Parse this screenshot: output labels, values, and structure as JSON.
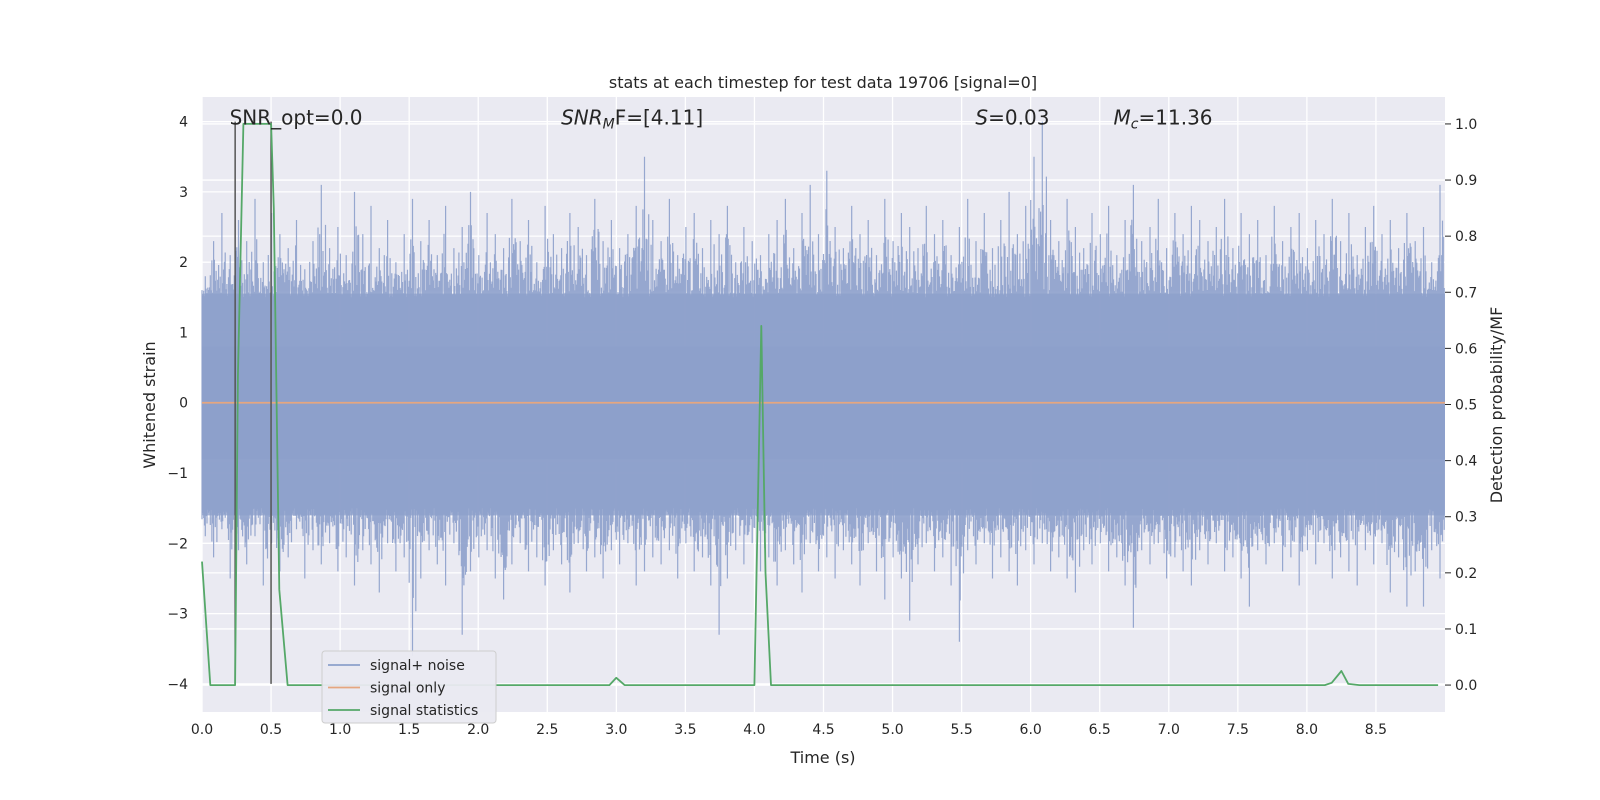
{
  "chart_data": {
    "type": "line",
    "title": "stats at each timestep for test data 19706 [signal=0]",
    "xlabel": "Time (s)",
    "ylabel": "Whitened strain",
    "y2label": "Detection probability/MF",
    "xlim": [
      0,
      9.0
    ],
    "ylim": [
      -4.4,
      4.35
    ],
    "y2lim": [
      -0.048,
      1.048
    ],
    "x_ticks": [
      0.0,
      0.5,
      1.0,
      1.5,
      2.0,
      2.5,
      3.0,
      3.5,
      4.0,
      4.5,
      5.0,
      5.5,
      6.0,
      6.5,
      7.0,
      7.5,
      8.0,
      8.5
    ],
    "x_tick_labels": [
      "0.0",
      "0.5",
      "1.0",
      "1.5",
      "2.0",
      "2.5",
      "3.0",
      "3.5",
      "4.0",
      "4.5",
      "5.0",
      "5.5",
      "6.0",
      "6.5",
      "7.0",
      "7.5",
      "8.0",
      "8.5"
    ],
    "y_ticks": [
      -4,
      -3,
      -2,
      -1,
      0,
      1,
      2,
      3,
      4
    ],
    "y_tick_labels": [
      "−4",
      "−3",
      "−2",
      "−1",
      "0",
      "1",
      "2",
      "3",
      "4"
    ],
    "y2_ticks": [
      0.0,
      0.1,
      0.2,
      0.3,
      0.4,
      0.5,
      0.6,
      0.7,
      0.8,
      0.9,
      1.0
    ],
    "y2_tick_labels": [
      "0.0",
      "0.1",
      "0.2",
      "0.3",
      "0.4",
      "0.5",
      "0.6",
      "0.7",
      "0.8",
      "0.9",
      "1.0"
    ],
    "grid": true,
    "legend_position": "lower-left",
    "series": [
      {
        "name": "signal+ noise",
        "color": "#8da0cb",
        "axis": "left",
        "x": [
          0.0,
          0.06,
          0.12,
          0.18,
          0.24,
          0.3,
          0.36,
          0.42,
          0.48,
          0.54,
          0.6,
          0.66,
          0.72,
          0.78,
          0.84,
          0.9,
          0.96,
          1.02,
          1.08,
          1.14,
          1.2,
          1.26,
          1.32,
          1.38,
          1.44,
          1.5,
          1.56,
          1.62,
          1.68,
          1.74,
          1.8,
          1.86,
          1.92,
          1.98,
          2.04,
          2.1,
          2.16,
          2.22,
          2.28,
          2.34,
          2.4,
          2.46,
          2.52,
          2.58,
          2.64,
          2.7,
          2.76,
          2.82,
          2.88,
          2.94,
          3.0,
          3.06,
          3.12,
          3.18,
          3.24,
          3.3,
          3.36,
          3.42,
          3.48,
          3.54,
          3.6,
          3.66,
          3.72,
          3.78,
          3.84,
          3.9,
          3.96,
          4.02,
          4.08,
          4.14,
          4.2,
          4.26,
          4.32,
          4.38,
          4.44,
          4.5,
          4.56,
          4.62,
          4.68,
          4.74,
          4.8,
          4.86,
          4.92,
          4.98,
          5.04,
          5.1,
          5.16,
          5.22,
          5.28,
          5.34,
          5.4,
          5.46,
          5.52,
          5.58,
          5.64,
          5.7,
          5.76,
          5.82,
          5.88,
          5.94,
          6.0,
          6.06,
          6.12,
          6.18,
          6.24,
          6.3,
          6.36,
          6.42,
          6.48,
          6.54,
          6.6,
          6.66,
          6.72,
          6.78,
          6.84,
          6.9,
          6.96,
          7.02,
          7.08,
          7.14,
          7.2,
          7.26,
          7.32,
          7.38,
          7.44,
          7.5,
          7.56,
          7.62,
          7.68,
          7.74,
          7.8,
          7.86,
          7.92,
          7.98,
          8.04,
          8.1,
          8.16,
          8.22,
          8.28,
          8.34,
          8.4,
          8.46,
          8.52,
          8.58,
          8.64,
          8.7,
          8.76,
          8.82,
          8.88,
          8.94
        ],
        "y_max": [
          1.8,
          2.3,
          2.7,
          2.1,
          2.6,
          2.3,
          2.9,
          2.0,
          2.7,
          2.4,
          2.2,
          2.6,
          1.9,
          2.3,
          3.1,
          2.2,
          2.5,
          2.1,
          3.0,
          2.4,
          2.8,
          2.2,
          2.6,
          2.0,
          2.4,
          2.9,
          2.3,
          2.6,
          2.1,
          2.8,
          2.2,
          2.5,
          3.0,
          2.1,
          2.7,
          2.4,
          2.2,
          2.9,
          2.3,
          2.6,
          2.0,
          2.8,
          2.4,
          2.2,
          2.7,
          2.5,
          2.1,
          2.9,
          2.3,
          2.6,
          2.2,
          2.4,
          2.8,
          3.5,
          2.6,
          2.3,
          2.9,
          2.1,
          2.5,
          2.7,
          2.2,
          2.6,
          2.4,
          2.8,
          2.0,
          2.5,
          2.3,
          2.1,
          2.4,
          2.6,
          2.9,
          2.2,
          2.7,
          3.1,
          2.4,
          3.3,
          2.5,
          2.2,
          2.8,
          2.4,
          2.6,
          2.1,
          2.9,
          2.3,
          2.7,
          2.5,
          2.2,
          2.8,
          2.4,
          2.6,
          2.1,
          2.5,
          2.9,
          2.3,
          2.7,
          2.2,
          2.6,
          3.0,
          2.4,
          2.8,
          3.5,
          4.0,
          2.6,
          2.3,
          2.9,
          2.5,
          2.2,
          2.7,
          2.4,
          2.8,
          2.1,
          2.6,
          3.1,
          2.3,
          2.5,
          2.9,
          2.2,
          2.7,
          2.4,
          2.8,
          2.6,
          2.3,
          2.5,
          2.9,
          2.2,
          2.7,
          2.4,
          2.6,
          2.1,
          2.8,
          2.3,
          2.5,
          2.7,
          2.2,
          2.6,
          2.4,
          2.9,
          2.3,
          2.7,
          2.1,
          2.5,
          2.8,
          2.4,
          2.6,
          2.2,
          2.7,
          2.3,
          2.5,
          2.0,
          3.1
        ],
        "y_min": [
          -1.9,
          -2.2,
          -1.8,
          -2.5,
          -2.1,
          -2.3,
          -1.9,
          -2.6,
          -2.0,
          -2.4,
          -2.2,
          -1.8,
          -2.5,
          -2.1,
          -2.3,
          -2.0,
          -2.4,
          -2.2,
          -2.6,
          -2.1,
          -2.3,
          -2.7,
          -2.0,
          -2.4,
          -2.2,
          -3.6,
          -2.5,
          -2.1,
          -2.3,
          -2.6,
          -2.0,
          -3.3,
          -2.4,
          -2.2,
          -2.1,
          -2.5,
          -2.8,
          -2.3,
          -2.0,
          -2.4,
          -2.2,
          -2.6,
          -2.1,
          -2.3,
          -2.7,
          -2.0,
          -2.4,
          -2.2,
          -2.5,
          -2.1,
          -2.3,
          -2.0,
          -2.6,
          -2.4,
          -2.2,
          -2.3,
          -2.1,
          -2.5,
          -2.0,
          -2.4,
          -2.2,
          -2.6,
          -3.3,
          -2.5,
          -2.1,
          -2.3,
          -2.0,
          -2.4,
          -2.2,
          -2.6,
          -2.1,
          -2.3,
          -2.7,
          -2.0,
          -2.4,
          -2.2,
          -2.5,
          -2.1,
          -2.3,
          -2.6,
          -2.0,
          -2.4,
          -2.8,
          -2.2,
          -2.5,
          -3.1,
          -2.3,
          -2.0,
          -2.4,
          -2.2,
          -2.6,
          -3.4,
          -2.1,
          -2.3,
          -2.0,
          -2.5,
          -2.2,
          -2.4,
          -2.6,
          -2.1,
          -2.3,
          -2.0,
          -2.4,
          -2.2,
          -2.5,
          -2.7,
          -2.1,
          -2.3,
          -2.0,
          -2.4,
          -2.2,
          -2.6,
          -3.2,
          -2.1,
          -2.3,
          -2.0,
          -2.5,
          -2.2,
          -2.4,
          -2.6,
          -2.1,
          -2.3,
          -2.0,
          -2.4,
          -2.2,
          -2.5,
          -2.9,
          -2.1,
          -2.3,
          -2.0,
          -2.4,
          -2.2,
          -2.6,
          -2.1,
          -2.3,
          -2.0,
          -2.5,
          -2.2,
          -2.4,
          -2.6,
          -2.1,
          -2.3,
          -2.0,
          -2.7,
          -2.2,
          -2.9,
          -2.4,
          -2.9,
          -2.1,
          -2.5
        ]
      },
      {
        "name": "signal only",
        "color": "#e5a67f",
        "axis": "left",
        "x": [
          0.0,
          9.0
        ],
        "y": [
          0.0,
          0.0
        ]
      },
      {
        "name": "signal statistics",
        "color": "#55a868",
        "axis": "right",
        "x": [
          0.0,
          0.06,
          0.24,
          0.26,
          0.3,
          0.5,
          0.52,
          0.56,
          0.62,
          2.95,
          3.0,
          3.06,
          4.0,
          4.05,
          4.08,
          4.12,
          8.13,
          8.18,
          8.25,
          8.3,
          8.38,
          8.95
        ],
        "y": [
          0.22,
          0.0,
          0.0,
          0.55,
          1.0,
          1.0,
          0.85,
          0.17,
          0.0,
          0.0,
          0.013,
          0.0,
          0.0,
          0.64,
          0.2,
          0.0,
          0.0,
          0.004,
          0.025,
          0.002,
          0.0,
          0.0
        ]
      }
    ],
    "vertical_lines": [
      {
        "x": 0.24,
        "y_from": -4.0,
        "y_to": 4.0,
        "color": "#555555"
      },
      {
        "x": 0.5,
        "y_from": -4.0,
        "y_to": 4.0,
        "color": "#555555"
      }
    ],
    "annotations": [
      {
        "id": "snr_opt",
        "text": "SNR_opt=0.0",
        "x": 0.2,
        "y": 4.0
      },
      {
        "id": "snr_mf",
        "prefix": "SNR",
        "sub": "M",
        "suffix": "F=[4.11]",
        "x": 2.6,
        "y": 4.0
      },
      {
        "id": "s",
        "prefix": "S",
        "suffix": "=0.03",
        "x": 5.6,
        "y": 4.0
      },
      {
        "id": "mc",
        "prefix": "M",
        "sub": "c",
        "suffix": "=11.36",
        "x": 6.6,
        "y": 4.0
      }
    ]
  }
}
